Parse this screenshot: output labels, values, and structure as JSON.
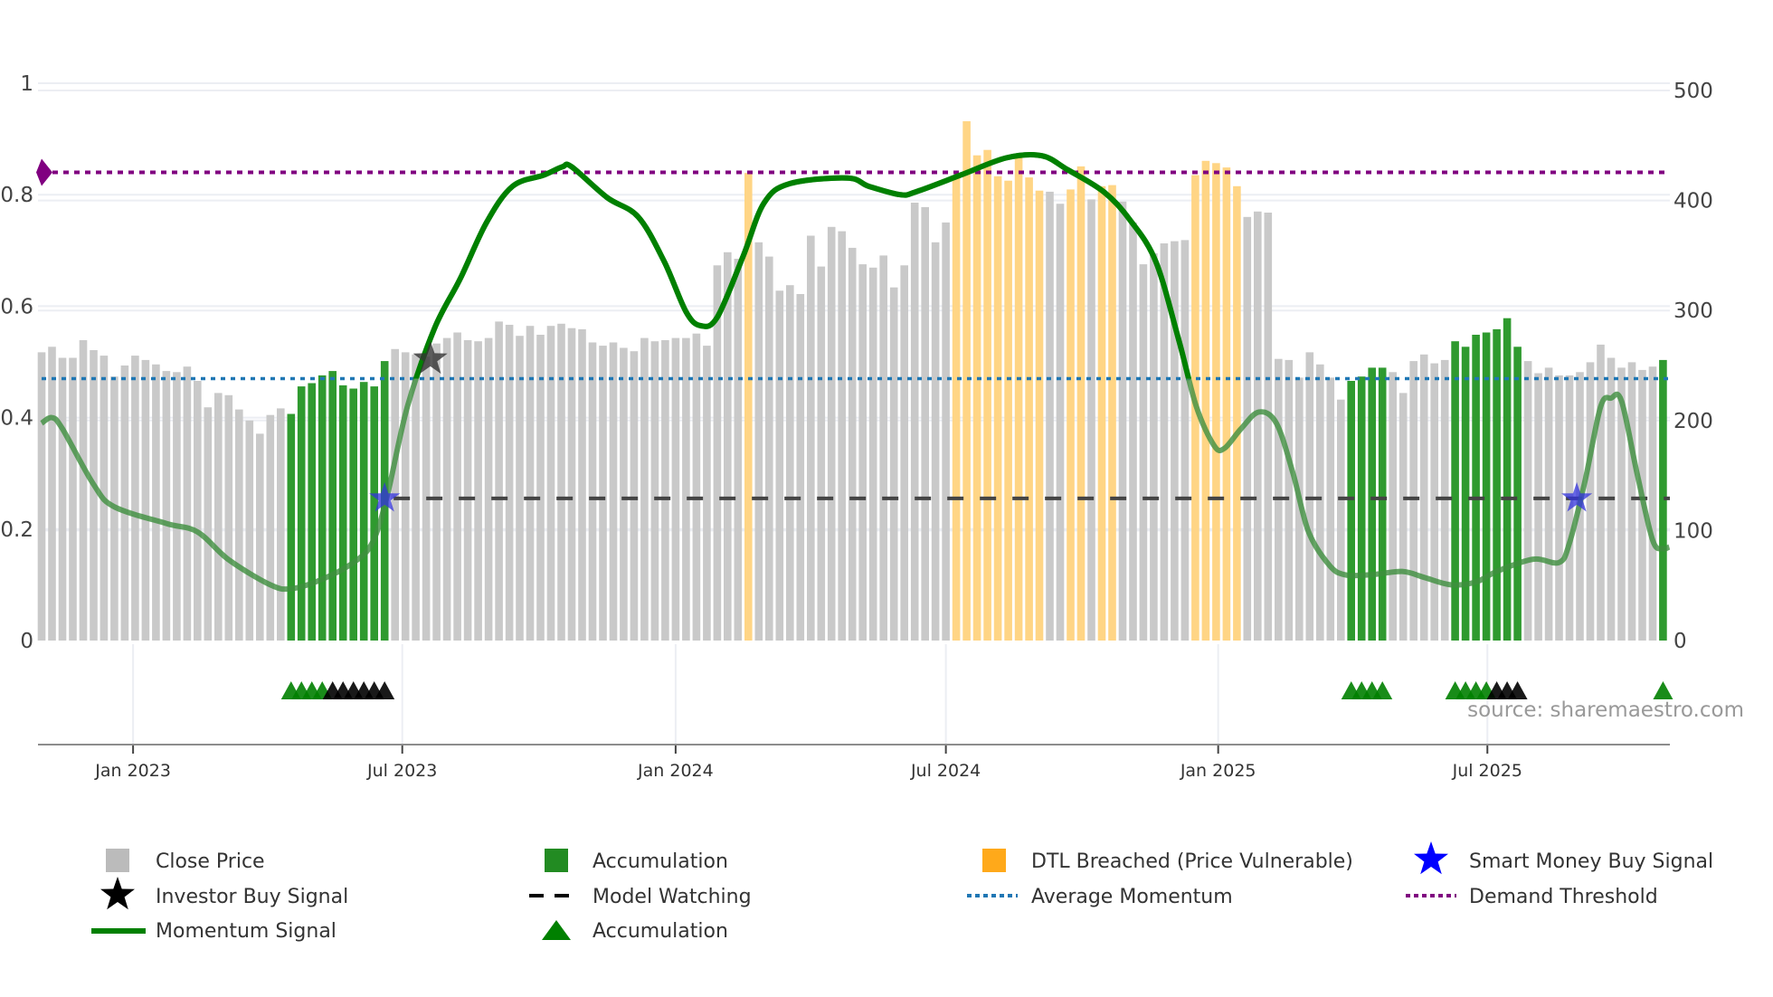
{
  "chart_data": {
    "type": "bar",
    "title": "",
    "xlabel": "",
    "ylabel_left": "",
    "ylabel_right": "",
    "x_unit": "week index",
    "left_axis": {
      "range": [
        0,
        1
      ],
      "ticks": [
        0,
        0.2,
        0.4,
        0.6,
        0.8,
        1
      ],
      "tick_labels": [
        "0",
        "0.2",
        "0.4",
        "0.6",
        "0.8",
        "1"
      ]
    },
    "right_axis": {
      "range": [
        0,
        500
      ],
      "ticks": [
        0,
        100,
        200,
        300,
        400,
        500
      ],
      "tick_labels": [
        "0",
        "100",
        "200",
        "300",
        "400",
        "500"
      ]
    },
    "x_ticks": [
      {
        "label": "Jan 2023",
        "index": 8.8
      },
      {
        "label": "Jul 2023",
        "index": 34.7
      },
      {
        "label": "Jan 2024",
        "index": 61.0
      },
      {
        "label": "Jul 2024",
        "index": 87.0
      },
      {
        "label": "Jan 2025",
        "index": 113.2
      },
      {
        "label": "Jul 2025",
        "index": 139.1
      }
    ],
    "grid": true,
    "close_price": [
      262,
      267,
      257,
      257,
      273,
      264,
      259,
      240,
      250,
      259,
      255,
      251,
      245,
      244,
      249,
      236,
      212,
      225,
      223,
      210,
      200,
      188,
      205,
      211,
      206,
      231,
      234,
      241,
      245,
      232,
      229,
      235,
      231,
      254,
      265,
      262,
      260,
      258,
      270,
      275,
      280,
      273,
      272,
      275,
      290,
      287,
      277,
      286,
      278,
      286,
      288,
      284,
      283,
      271,
      268,
      271,
      266,
      263,
      275,
      272,
      273,
      275,
      275,
      279,
      268,
      341,
      353,
      347,
      425,
      362,
      349,
      318,
      323,
      315,
      368,
      340,
      376,
      372,
      357,
      342,
      339,
      350,
      321,
      341,
      398,
      394,
      362,
      380,
      422,
      472,
      441,
      446,
      422,
      418,
      440,
      421,
      409,
      408,
      397,
      410,
      431,
      401,
      413,
      414,
      399,
      380,
      342,
      352,
      361,
      363,
      364,
      423,
      436,
      434,
      430,
      413,
      385,
      390,
      389,
      256,
      255,
      239,
      262,
      251,
      239,
      219,
      236,
      240,
      248,
      248,
      244,
      225,
      254,
      260,
      252,
      255,
      272,
      267,
      278,
      280,
      283,
      293,
      267,
      254,
      243,
      248,
      241,
      241,
      244,
      253,
      269,
      257,
      248,
      253,
      246,
      249,
      255
    ],
    "bar_category": "cccccccccccccccccccccccc",
    "bar_category_runs": [
      [
        "close",
        24
      ],
      [
        "accumulation",
        10
      ],
      [
        "close",
        34
      ],
      [
        "dtl",
        1
      ],
      [
        "close",
        19
      ],
      [
        "dtl",
        9
      ],
      [
        "close",
        2
      ],
      [
        "dtl",
        2
      ],
      [
        "close",
        1
      ],
      [
        "dtl",
        2
      ],
      [
        "close",
        7
      ],
      [
        "dtl",
        5
      ],
      [
        "close",
        10
      ],
      [
        "accumulation",
        4
      ],
      [
        "close",
        6
      ],
      [
        "accumulation",
        7
      ],
      [
        "close",
        13
      ],
      [
        "accumulation",
        1
      ]
    ],
    "momentum_signal": [
      [
        0,
        0.39
      ],
      [
        1,
        0.4
      ],
      [
        2,
        0.38
      ],
      [
        5,
        0.28
      ],
      [
        7,
        0.24
      ],
      [
        12,
        0.21
      ],
      [
        15,
        0.195
      ],
      [
        18,
        0.145
      ],
      [
        22,
        0.1
      ],
      [
        24,
        0.093
      ],
      [
        27,
        0.11
      ],
      [
        30,
        0.14
      ],
      [
        31.8,
        0.175
      ],
      [
        33.2,
        0.256
      ],
      [
        35.2,
        0.42
      ],
      [
        37.8,
        0.56
      ],
      [
        40.3,
        0.65
      ],
      [
        42.8,
        0.75
      ],
      [
        45.3,
        0.815
      ],
      [
        48.3,
        0.835
      ],
      [
        50.1,
        0.85
      ],
      [
        51,
        0.85
      ],
      [
        54.4,
        0.795
      ],
      [
        57.4,
        0.76
      ],
      [
        59.9,
        0.68
      ],
      [
        62,
        0.59
      ],
      [
        63.4,
        0.565
      ],
      [
        65,
        0.58
      ],
      [
        67.5,
        0.69
      ],
      [
        69.5,
        0.785
      ],
      [
        72,
        0.82
      ],
      [
        77.5,
        0.83
      ],
      [
        79.6,
        0.815
      ],
      [
        82.6,
        0.8
      ],
      [
        84.1,
        0.805
      ],
      [
        88.4,
        0.835
      ],
      [
        92.8,
        0.866
      ],
      [
        96.2,
        0.87
      ],
      [
        98.7,
        0.845
      ],
      [
        102.2,
        0.805
      ],
      [
        104.7,
        0.755
      ],
      [
        107.2,
        0.68
      ],
      [
        109.4,
        0.54
      ],
      [
        111.1,
        0.42
      ],
      [
        112.8,
        0.35
      ],
      [
        113.8,
        0.345
      ],
      [
        115.4,
        0.38
      ],
      [
        117.1,
        0.41
      ],
      [
        118.8,
        0.39
      ],
      [
        120.4,
        0.3
      ],
      [
        121.9,
        0.195
      ],
      [
        123.9,
        0.135
      ],
      [
        125.4,
        0.118
      ],
      [
        127.9,
        0.118
      ],
      [
        130.9,
        0.124
      ],
      [
        132.9,
        0.114
      ],
      [
        135.6,
        0.1
      ],
      [
        138,
        0.105
      ],
      [
        140,
        0.124
      ],
      [
        143.5,
        0.146
      ],
      [
        146,
        0.14
      ],
      [
        147,
        0.175
      ],
      [
        148.5,
        0.287
      ],
      [
        150,
        0.42
      ],
      [
        151,
        0.435
      ],
      [
        152,
        0.43
      ],
      [
        153.5,
        0.3
      ],
      [
        155,
        0.18
      ],
      [
        156,
        0.165
      ],
      [
        156.6,
        0.168
      ]
    ],
    "average_momentum": 0.47,
    "demand_threshold": 0.84,
    "model_watching": {
      "value": 0.255,
      "start_index": 33
    },
    "investor_buy_signals": [
      {
        "index": 37.4,
        "value": 0.505
      }
    ],
    "smart_money_buy_signals": [
      {
        "index": 33,
        "value": 0.255
      },
      {
        "index": 147.7,
        "value": 0.255
      }
    ],
    "accumulation_markers": [
      {
        "index": 24,
        "color": "green"
      },
      {
        "index": 25,
        "color": "green"
      },
      {
        "index": 26,
        "color": "green"
      },
      {
        "index": 27,
        "color": "green"
      },
      {
        "index": 28,
        "color": "black"
      },
      {
        "index": 29,
        "color": "black"
      },
      {
        "index": 30,
        "color": "black"
      },
      {
        "index": 31,
        "color": "black"
      },
      {
        "index": 32,
        "color": "black"
      },
      {
        "index": 33,
        "color": "black"
      },
      {
        "index": 126,
        "color": "green"
      },
      {
        "index": 127,
        "color": "green"
      },
      {
        "index": 128,
        "color": "green"
      },
      {
        "index": 129,
        "color": "green"
      },
      {
        "index": 136,
        "color": "green"
      },
      {
        "index": 137,
        "color": "green"
      },
      {
        "index": 138,
        "color": "green"
      },
      {
        "index": 139,
        "color": "green"
      },
      {
        "index": 140,
        "color": "black"
      },
      {
        "index": 141,
        "color": "black"
      },
      {
        "index": 142,
        "color": "black"
      },
      {
        "index": 156,
        "color": "green"
      }
    ],
    "legend_position": "bottom",
    "legend": [
      {
        "label": "Close Price",
        "symbol": "square",
        "color": "#bbbbbb"
      },
      {
        "label": "Accumulation",
        "symbol": "square",
        "color": "#228b22"
      },
      {
        "label": "DTL Breached (Price Vulnerable)",
        "symbol": "square",
        "color": "#ffa91a"
      },
      {
        "label": "Smart Money Buy Signal",
        "symbol": "star",
        "color": "#0000ff"
      },
      {
        "label": "Investor Buy Signal",
        "symbol": "star",
        "color": "#000000"
      },
      {
        "label": "Model Watching",
        "symbol": "dash",
        "color": "#000000"
      },
      {
        "label": "Average Momentum",
        "symbol": "dot",
        "color": "#1f77b4"
      },
      {
        "label": "Demand Threshold",
        "symbol": "dot",
        "color": "#800080"
      },
      {
        "label": "Momentum Signal",
        "symbol": "line",
        "color": "#008000"
      },
      {
        "label": "Accumulation",
        "symbol": "triangle",
        "color": "#008000"
      }
    ],
    "source": "source: sharemaestro.com"
  },
  "colors": {
    "close": "#c9c9c9",
    "accumulation": "#2f9a2f",
    "dtl": "#ffd585",
    "momentum": "#008000",
    "momentum_faded": "#3f8f3f",
    "average": "#1f77b4",
    "threshold": "#800080",
    "watching": "#444444",
    "smart_money": "#3333dd",
    "investor": "#333333"
  }
}
